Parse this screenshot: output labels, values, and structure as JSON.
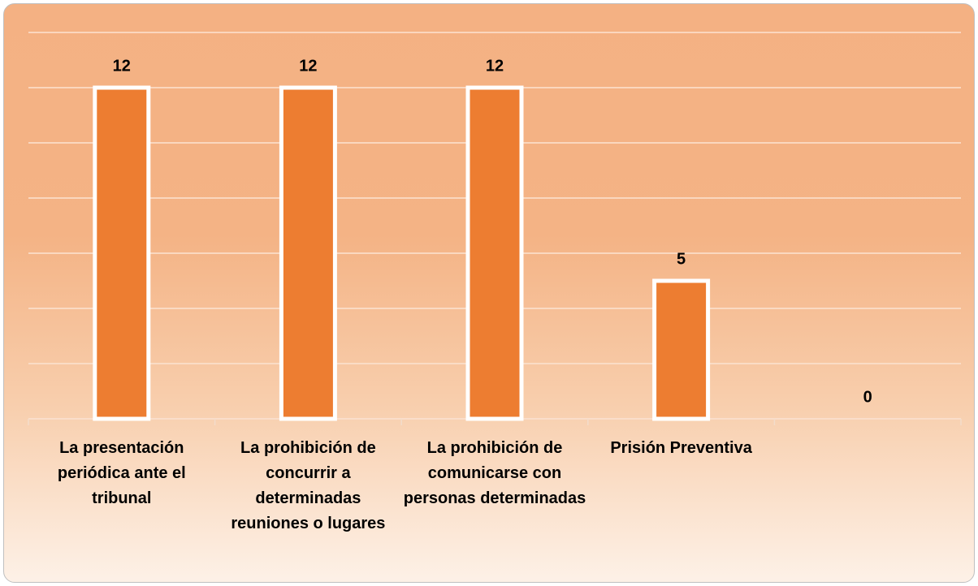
{
  "chart_data": {
    "type": "bar",
    "categories": [
      "La presentación periódica ante el tribunal",
      "La prohibición de concurrir a determinadas reuniones o lugares",
      "La prohibición de comunicarse con personas determinadas",
      "Prisión Preventiva",
      null
    ],
    "values": [
      12,
      12,
      12,
      5,
      0
    ],
    "color": "#ed7d31",
    "ylim": [
      0,
      14
    ],
    "yticks": [
      0,
      2,
      4,
      6,
      8,
      10,
      12,
      14
    ],
    "grid": true
  }
}
